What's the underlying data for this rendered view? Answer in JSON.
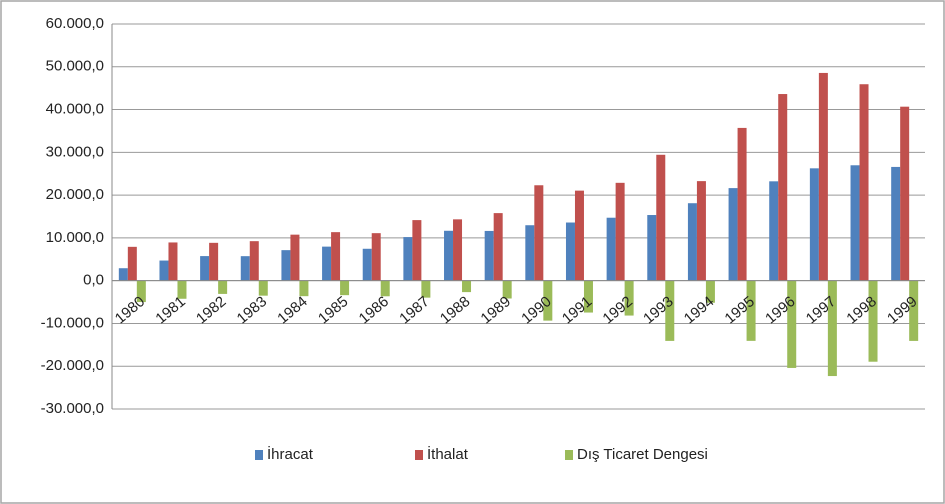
{
  "chart_data": {
    "type": "bar",
    "categories": [
      "1980",
      "1981",
      "1982",
      "1983",
      "1984",
      "1985",
      "1986",
      "1987",
      "1988",
      "1989",
      "1990",
      "1991",
      "1992",
      "1993",
      "1994",
      "1995",
      "1996",
      "1997",
      "1998",
      "1999"
    ],
    "series": [
      {
        "name": "İhracat",
        "color": "#4f81bd",
        "values": [
          2910,
          4703,
          5746,
          5728,
          7134,
          7958,
          7457,
          10190,
          11662,
          11625,
          12959,
          13593,
          14715,
          15345,
          18106,
          21637,
          23224,
          26261,
          26974,
          26587
        ]
      },
      {
        "name": "İthalat",
        "color": "#c0504d",
        "values": [
          7909,
          8933,
          8843,
          9235,
          10757,
          11343,
          11105,
          14158,
          14335,
          15792,
          22302,
          21047,
          22871,
          29428,
          23270,
          35709,
          43627,
          48559,
          45921,
          40671
        ]
      },
      {
        "name": "Dış Ticaret Dengesi",
        "color": "#9bbb59",
        "values": [
          -4999,
          -4230,
          -3097,
          -3507,
          -3623,
          -3385,
          -3648,
          -3968,
          -2673,
          -4167,
          -9343,
          -7453,
          -8156,
          -14083,
          -5164,
          -14072,
          -20402,
          -22298,
          -18947,
          -14084
        ]
      }
    ],
    "ylim": [
      -30000,
      60000
    ],
    "yticks": [
      {
        "value": -30000,
        "label": "-30.000,0"
      },
      {
        "value": -20000,
        "label": "-20.000,0"
      },
      {
        "value": -10000,
        "label": "-10.000,0"
      },
      {
        "value": 0,
        "label": "0,0"
      },
      {
        "value": 10000,
        "label": "10.000,0"
      },
      {
        "value": 20000,
        "label": "20.000,0"
      },
      {
        "value": 30000,
        "label": "30.000,0"
      },
      {
        "value": 40000,
        "label": "40.000,0"
      },
      {
        "value": 50000,
        "label": "50.000,0"
      },
      {
        "value": 60000,
        "label": "60.000,0"
      }
    ],
    "grid": true,
    "legend": "bottom"
  }
}
